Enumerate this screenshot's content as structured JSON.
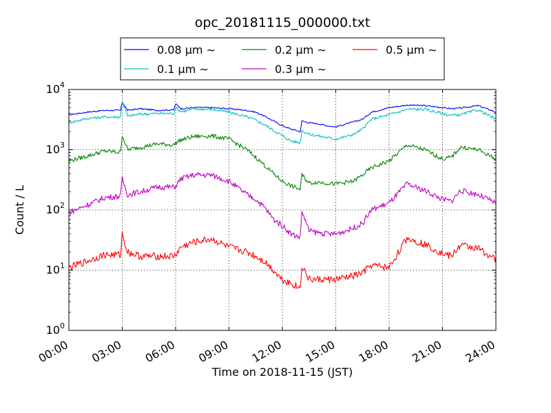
{
  "chart_data": {
    "type": "line",
    "title": "opc_20181115_000000.txt",
    "xlabel": "Time on 2018-11-15 (JST)",
    "ylabel": "Count / L",
    "yscale": "log",
    "xlim": [
      "00:00",
      "24:00"
    ],
    "ylim": [
      1,
      10000
    ],
    "x_unit": "hours",
    "grid": true,
    "legend_position": "top-center (above plot)",
    "x_ticks": [
      "00:00",
      "03:00",
      "06:00",
      "09:00",
      "12:00",
      "15:00",
      "18:00",
      "21:00",
      "24:00"
    ],
    "y_ticks": [
      {
        "value": 1,
        "base": "10",
        "exp": "0"
      },
      {
        "value": 10,
        "base": "10",
        "exp": "1"
      },
      {
        "value": 100,
        "base": "10",
        "exp": "2"
      },
      {
        "value": 1000,
        "base": "10",
        "exp": "3"
      },
      {
        "value": 10000,
        "base": "10",
        "exp": "4"
      }
    ],
    "x": [
      0,
      1,
      2,
      2.9,
      3.0,
      3.3,
      4,
      5,
      5.9,
      6.0,
      6.3,
      7,
      8,
      9,
      10,
      10.5,
      11,
      11.5,
      12,
      12.5,
      13,
      13.1,
      13.5,
      14,
      14.5,
      15,
      16,
      16.5,
      17,
      18,
      19,
      20,
      21,
      21.5,
      22,
      23,
      24
    ],
    "series": [
      {
        "name": "0.08 μm ∼",
        "color": "#0000ff",
        "values": [
          3800,
          4200,
          4500,
          4500,
          6200,
          4500,
          4800,
          4500,
          4600,
          5800,
          4800,
          5000,
          5000,
          4800,
          4500,
          4200,
          3600,
          3000,
          2500,
          2200,
          2000,
          3000,
          2800,
          2700,
          2500,
          2400,
          2900,
          3200,
          4200,
          5000,
          5500,
          5400,
          5000,
          4800,
          4900,
          5400,
          4200
        ]
      },
      {
        "name": "0.1 μm ∼",
        "color": "#00bfbf",
        "values": [
          2800,
          3300,
          3500,
          3500,
          6300,
          3600,
          3900,
          4000,
          4000,
          5000,
          4300,
          4700,
          4700,
          4200,
          3500,
          3100,
          2600,
          2100,
          1700,
          1400,
          1300,
          2100,
          1800,
          1700,
          1600,
          1500,
          1800,
          2200,
          3200,
          3800,
          4700,
          4700,
          4000,
          3700,
          3800,
          4600,
          3200
        ]
      },
      {
        "name": "0.2 μm ∼",
        "color": "#008000",
        "values": [
          650,
          780,
          950,
          900,
          1750,
          1000,
          1100,
          1250,
          1200,
          1300,
          1450,
          1650,
          1700,
          1500,
          1000,
          750,
          550,
          400,
          300,
          250,
          220,
          380,
          280,
          290,
          280,
          270,
          300,
          380,
          500,
          650,
          1200,
          1000,
          700,
          750,
          1100,
          1000,
          700
        ]
      },
      {
        "name": "0.3 μm ∼",
        "color": "#bf00bf",
        "values": [
          90,
          120,
          160,
          170,
          330,
          180,
          200,
          240,
          240,
          250,
          330,
          380,
          380,
          300,
          180,
          150,
          110,
          70,
          55,
          40,
          35,
          95,
          45,
          42,
          40,
          40,
          50,
          60,
          100,
          130,
          270,
          210,
          150,
          140,
          210,
          180,
          130
        ]
      },
      {
        "name": "0.5 μm ∼",
        "color": "#ff0000",
        "values": [
          11,
          14,
          18,
          18,
          40,
          20,
          17,
          17,
          17,
          18,
          24,
          29,
          33,
          24,
          20,
          17,
          14,
          10,
          7,
          6,
          5,
          12,
          7,
          7,
          7,
          7,
          8,
          9,
          12,
          11,
          34,
          27,
          19,
          17,
          26,
          23,
          15
        ]
      }
    ]
  }
}
